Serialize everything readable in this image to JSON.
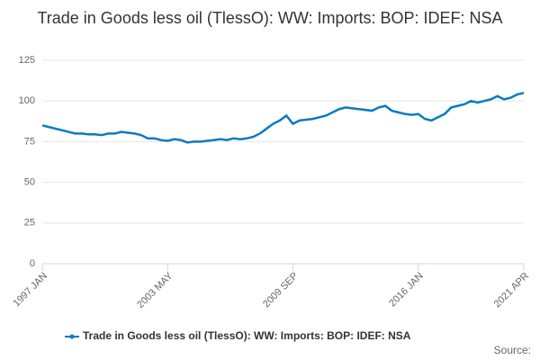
{
  "chart_data": {
    "type": "line",
    "title": "Trade in Goods less oil (TlessO): WW: Imports: BOP: IDEF: NSA",
    "categories": [
      "1997 JAN",
      null,
      null,
      null,
      null,
      null,
      null,
      null,
      null,
      null,
      null,
      null,
      null,
      null,
      null,
      null,
      null,
      null,
      null,
      "2003 MAY",
      null,
      null,
      null,
      null,
      null,
      null,
      null,
      null,
      null,
      null,
      null,
      null,
      null,
      null,
      null,
      null,
      null,
      null,
      "2009 SEP",
      null,
      null,
      null,
      null,
      null,
      null,
      null,
      null,
      null,
      null,
      null,
      null,
      null,
      null,
      null,
      null,
      null,
      null,
      "2016 JAN",
      null,
      null,
      null,
      null,
      null,
      null,
      null,
      null,
      null,
      null,
      null,
      null,
      null,
      null,
      null,
      "2021 APR"
    ],
    "series": [
      {
        "name": "Trade in Goods less oil (TlessO): WW: Imports: BOP: IDEF: NSA",
        "color": "#0b7bc1",
        "values": [
          85,
          84,
          83,
          82,
          81,
          80,
          80,
          79.5,
          79.5,
          79,
          80,
          80,
          81,
          80.5,
          80,
          79,
          77,
          77,
          76,
          75.5,
          76.5,
          76,
          74.5,
          75,
          75,
          75.5,
          76,
          76.5,
          76,
          77,
          76.5,
          77,
          78,
          80,
          83,
          86,
          88,
          91,
          86,
          88,
          88.5,
          89,
          90,
          91,
          93,
          95,
          96,
          95.5,
          95,
          94.5,
          94,
          96,
          97,
          94,
          93,
          92,
          91.5,
          92,
          89,
          88,
          90,
          92,
          96,
          97,
          98,
          100,
          99,
          100,
          101,
          103,
          101,
          102,
          104,
          105
        ]
      }
    ],
    "ylim": [
      0,
      125
    ],
    "yticks": [
      0,
      25,
      50,
      75,
      100,
      125
    ],
    "grid": true,
    "source": "Source:"
  }
}
